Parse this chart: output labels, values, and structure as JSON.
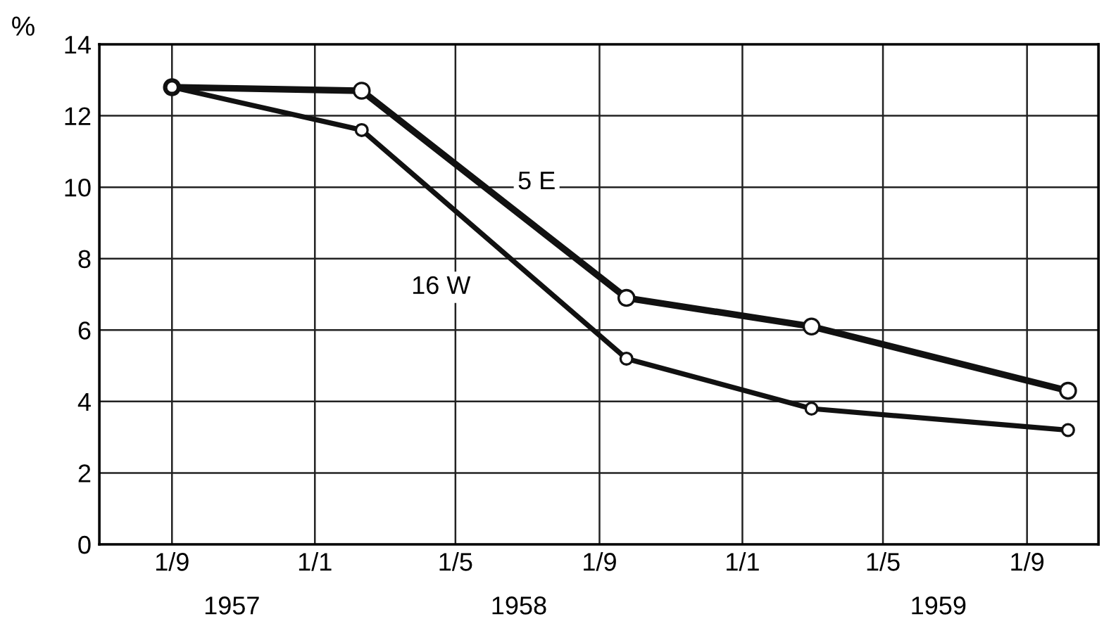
{
  "chart_data": {
    "type": "line",
    "ylabel": "%",
    "x": [
      "1957-09-01",
      "1958-02-10",
      "1958-09-24",
      "1959-03-01",
      "1959-10-06"
    ],
    "series": [
      {
        "name": "5 E",
        "color": "#111111",
        "values": [
          12.8,
          12.7,
          6.9,
          6.1,
          4.3
        ]
      },
      {
        "name": "16 W",
        "color": "#111111",
        "values": [
          12.8,
          11.6,
          5.2,
          3.8,
          3.2
        ]
      }
    ],
    "xlim": [
      "1957-07-01",
      "1959-11-01"
    ],
    "xticks": [
      {
        "value": "1957-09-01",
        "label": "1/9"
      },
      {
        "value": "1958-01-01",
        "label": "1/1"
      },
      {
        "value": "1958-05-01",
        "label": "1/5"
      },
      {
        "value": "1958-09-01",
        "label": "1/9"
      },
      {
        "value": "1959-01-01",
        "label": "1/1"
      },
      {
        "value": "1959-05-01",
        "label": "1/5"
      },
      {
        "value": "1959-09-01",
        "label": "1/9"
      }
    ],
    "ylim": [
      0,
      14
    ],
    "yticks": [
      0,
      2,
      4,
      6,
      8,
      10,
      12,
      14
    ],
    "grid": true,
    "marker": "circle",
    "line_style": "solid",
    "legend": false,
    "annotations": [
      "1957",
      "1958",
      "1959"
    ]
  }
}
